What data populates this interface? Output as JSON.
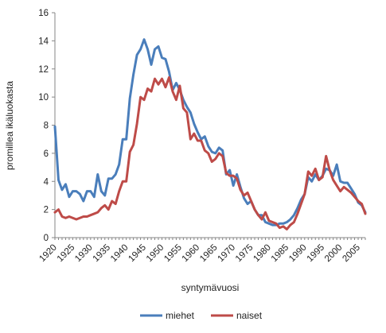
{
  "chart_data": {
    "type": "line",
    "xlabel": "syntymävuosi",
    "ylabel": "promillea ikäluokasta",
    "xlim": [
      1920,
      2007
    ],
    "ylim": [
      0,
      16
    ],
    "y_ticks": [
      0,
      2,
      4,
      6,
      8,
      10,
      12,
      14,
      16
    ],
    "x_ticks": [
      1920,
      1925,
      1930,
      1935,
      1940,
      1945,
      1950,
      1955,
      1960,
      1965,
      1970,
      1975,
      1980,
      1985,
      1990,
      1995,
      2000,
      2005
    ],
    "legend_position": "bottom",
    "grid": false,
    "series": [
      {
        "name": "miehet",
        "color": "#4a7ebb",
        "x": [
          1920,
          1921,
          1922,
          1923,
          1924,
          1925,
          1926,
          1927,
          1928,
          1929,
          1930,
          1931,
          1932,
          1933,
          1934,
          1935,
          1936,
          1937,
          1938,
          1939,
          1940,
          1941,
          1942,
          1943,
          1944,
          1945,
          1946,
          1947,
          1948,
          1949,
          1950,
          1951,
          1952,
          1953,
          1954,
          1955,
          1956,
          1957,
          1958,
          1959,
          1960,
          1961,
          1962,
          1963,
          1964,
          1965,
          1966,
          1967,
          1968,
          1969,
          1970,
          1971,
          1972,
          1973,
          1974,
          1975,
          1976,
          1977,
          1978,
          1979,
          1980,
          1981,
          1982,
          1983,
          1984,
          1985,
          1986,
          1987,
          1988,
          1989,
          1990,
          1991,
          1992,
          1993,
          1994,
          1995,
          1996,
          1997,
          1998,
          1999,
          2000,
          2001,
          2002,
          2003,
          2004,
          2005,
          2006,
          2007
        ],
        "values": [
          7.9,
          4.1,
          3.4,
          3.8,
          2.9,
          3.3,
          3.3,
          3.1,
          2.6,
          3.3,
          3.3,
          2.9,
          4.5,
          3.3,
          3.0,
          4.2,
          4.2,
          4.5,
          5.2,
          7.0,
          7.0,
          9.9,
          11.6,
          13.0,
          13.4,
          14.1,
          13.4,
          12.3,
          13.4,
          13.6,
          12.8,
          12.7,
          11.8,
          10.5,
          11.0,
          10.5,
          9.8,
          9.3,
          8.9,
          8.1,
          7.5,
          7.0,
          7.2,
          6.5,
          6.1,
          6.0,
          6.4,
          6.2,
          4.5,
          4.8,
          3.7,
          4.5,
          3.6,
          2.8,
          2.4,
          2.6,
          2.0,
          1.6,
          1.6,
          1.1,
          1.0,
          0.9,
          0.9,
          1.0,
          1.0,
          1.1,
          1.3,
          1.6,
          2.1,
          2.7,
          3.1,
          4.3,
          4.0,
          4.5,
          4.1,
          4.4,
          4.9,
          4.8,
          4.4,
          5.2,
          4.0,
          3.9,
          3.9,
          3.5,
          3.1,
          2.5,
          2.3,
          1.8
        ]
      },
      {
        "name": "naiset",
        "color": "#be4b48",
        "x": [
          1920,
          1921,
          1922,
          1923,
          1924,
          1925,
          1926,
          1927,
          1928,
          1929,
          1930,
          1931,
          1932,
          1933,
          1934,
          1935,
          1936,
          1937,
          1938,
          1939,
          1940,
          1941,
          1942,
          1943,
          1944,
          1945,
          1946,
          1947,
          1948,
          1949,
          1950,
          1951,
          1952,
          1953,
          1954,
          1955,
          1956,
          1957,
          1958,
          1959,
          1960,
          1961,
          1962,
          1963,
          1964,
          1965,
          1966,
          1967,
          1968,
          1969,
          1970,
          1971,
          1972,
          1973,
          1974,
          1975,
          1976,
          1977,
          1978,
          1979,
          1980,
          1981,
          1982,
          1983,
          1984,
          1985,
          1986,
          1987,
          1988,
          1989,
          1990,
          1991,
          1992,
          1993,
          1994,
          1995,
          1996,
          1997,
          1998,
          1999,
          2000,
          2001,
          2002,
          2003,
          2004,
          2005,
          2006,
          2007
        ],
        "values": [
          1.8,
          2.0,
          1.5,
          1.4,
          1.5,
          1.4,
          1.3,
          1.4,
          1.5,
          1.5,
          1.6,
          1.7,
          1.8,
          2.1,
          2.3,
          2.0,
          2.6,
          2.4,
          3.3,
          4.0,
          4.0,
          6.1,
          6.6,
          8.1,
          10.0,
          9.8,
          10.6,
          10.4,
          11.3,
          10.9,
          11.3,
          10.7,
          11.4,
          10.4,
          9.8,
          10.8,
          9.2,
          8.9,
          7.0,
          7.4,
          6.9,
          6.9,
          6.2,
          6.0,
          5.4,
          5.6,
          6.0,
          5.8,
          4.6,
          4.4,
          4.4,
          4.2,
          3.4,
          3.0,
          3.2,
          2.6,
          2.0,
          1.6,
          1.3,
          1.8,
          1.2,
          1.1,
          1.0,
          0.7,
          0.8,
          0.6,
          0.9,
          1.1,
          1.7,
          2.4,
          3.1,
          4.7,
          4.4,
          4.9,
          4.1,
          4.3,
          5.8,
          4.8,
          4.1,
          3.7,
          3.3,
          3.6,
          3.4,
          3.2,
          2.9,
          2.6,
          2.4,
          1.7
        ]
      }
    ]
  }
}
